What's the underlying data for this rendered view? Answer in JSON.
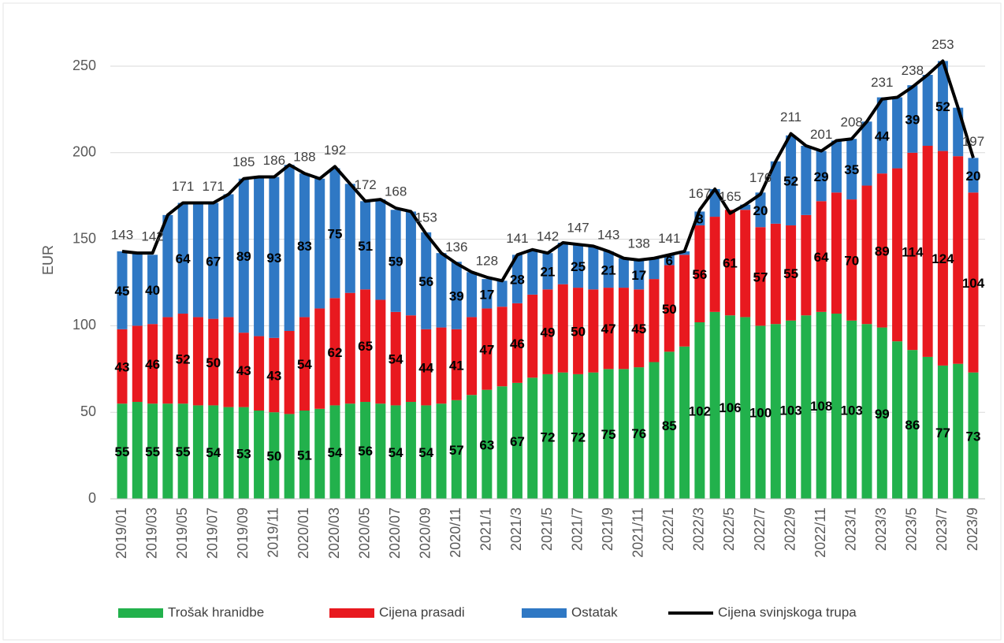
{
  "chart_data": {
    "type": "stacked-bar-line",
    "y_label": "EUR",
    "categories": [
      "2019/01",
      null,
      "2019/03",
      null,
      "2019/05",
      null,
      "2019/07",
      null,
      "2019/09",
      null,
      "2019/11",
      null,
      "2020/01",
      null,
      "2020/03",
      null,
      "2020/05",
      null,
      "2020/07",
      null,
      "2020/09",
      null,
      "2020/11",
      null,
      "2021/1",
      null,
      "2021/3",
      null,
      "2021/5",
      null,
      "2021/7",
      null,
      "2021/9",
      null,
      "2021/11",
      null,
      "2022/1",
      null,
      "2022/3",
      null,
      "2022/5",
      null,
      "2022/7",
      null,
      "2022/9",
      null,
      "2022/11",
      null,
      "2023/1",
      null,
      "2023/3",
      null,
      "2023/5",
      null,
      "2023/7",
      null,
      "2023/9"
    ],
    "ylim": [
      0,
      250
    ],
    "yticks": [
      0,
      50,
      100,
      150,
      200,
      250
    ],
    "grid": true,
    "series": [
      {
        "name": "Trošak hranidbe",
        "type": "bar",
        "color": "#22b14c",
        "values": [
          55,
          56,
          55,
          55,
          55,
          54,
          54,
          53,
          53,
          51,
          50,
          49,
          51,
          52,
          54,
          55,
          56,
          55,
          54,
          56,
          54,
          55,
          57,
          60,
          63,
          65,
          67,
          70,
          72,
          73,
          72,
          73,
          75,
          75,
          76,
          79,
          85,
          88,
          102,
          108,
          106,
          105,
          100,
          101,
          103,
          106,
          108,
          107,
          103,
          101,
          99,
          91,
          86,
          82,
          77,
          78,
          73
        ],
        "value_labels": [
          "55",
          null,
          "55",
          null,
          "55",
          null,
          "54",
          null,
          "53",
          null,
          "50",
          null,
          "51",
          null,
          "54",
          null,
          "56",
          null,
          "54",
          null,
          "54",
          null,
          "57",
          null,
          "63",
          null,
          "67",
          null,
          "72",
          null,
          "72",
          null,
          "75",
          null,
          "76",
          null,
          "85",
          null,
          "102",
          null,
          "106",
          null,
          "100",
          null,
          "103",
          null,
          "108",
          null,
          "103",
          null,
          "99",
          null,
          "86",
          null,
          "77",
          null,
          "73"
        ]
      },
      {
        "name": "Cijena prasadi",
        "type": "bar",
        "color": "#e8191f",
        "values": [
          43,
          44,
          46,
          50,
          52,
          51,
          50,
          52,
          43,
          43,
          43,
          48,
          54,
          58,
          62,
          64,
          65,
          60,
          54,
          50,
          44,
          44,
          41,
          45,
          47,
          46,
          46,
          48,
          49,
          51,
          50,
          48,
          47,
          47,
          45,
          48,
          50,
          53,
          56,
          55,
          61,
          62,
          57,
          58,
          55,
          58,
          64,
          70,
          70,
          80,
          89,
          100,
          114,
          122,
          124,
          120,
          104
        ],
        "value_labels": [
          "43",
          null,
          "46",
          null,
          "52",
          null,
          "50",
          null,
          "43",
          null,
          "43",
          null,
          "54",
          null,
          "62",
          null,
          "65",
          null,
          "54",
          null,
          "44",
          null,
          "41",
          null,
          "47",
          null,
          "46",
          null,
          "49",
          null,
          "50",
          null,
          "47",
          null,
          "45",
          null,
          "50",
          null,
          "56",
          null,
          "61",
          null,
          "57",
          null,
          "55",
          null,
          "64",
          null,
          "70",
          null,
          "89",
          null,
          "114",
          null,
          "124",
          null,
          "104"
        ]
      },
      {
        "name": "Ostatak",
        "type": "bar",
        "color": "#2f78c4",
        "values": [
          45,
          42,
          40,
          59,
          64,
          66,
          67,
          71,
          89,
          92,
          93,
          96,
          83,
          75,
          75,
          63,
          51,
          58,
          59,
          60,
          56,
          43,
          39,
          26,
          17,
          15,
          28,
          26,
          21,
          24,
          25,
          25,
          21,
          17,
          17,
          12,
          6,
          2,
          8,
          16,
          0,
          3,
          20,
          36,
          52,
          40,
          29,
          30,
          35,
          37,
          44,
          41,
          39,
          41,
          52,
          28,
          20
        ],
        "value_labels": [
          "45",
          null,
          "40",
          null,
          "64",
          null,
          "67",
          null,
          "89",
          null,
          "93",
          null,
          "83",
          null,
          "75",
          null,
          "51",
          null,
          "59",
          null,
          "56",
          null,
          "39",
          null,
          "17",
          null,
          "28",
          null,
          "21",
          null,
          "25",
          null,
          "21",
          null,
          "17",
          null,
          "6",
          null,
          "8",
          null,
          null,
          null,
          "20",
          null,
          "52",
          null,
          "29",
          null,
          "35",
          null,
          "44",
          null,
          "39",
          null,
          "52",
          null,
          "20"
        ]
      },
      {
        "name": "Cijena svinjskoga trupa",
        "type": "line",
        "color": "#000000",
        "values": [
          143,
          142,
          142,
          164,
          171,
          171,
          171,
          176,
          185,
          186,
          186,
          193,
          188,
          185,
          192,
          182,
          172,
          173,
          168,
          166,
          153,
          142,
          136,
          131,
          128,
          126,
          141,
          144,
          142,
          148,
          147,
          146,
          143,
          139,
          138,
          139,
          141,
          143,
          167,
          179,
          165,
          170,
          176,
          195,
          211,
          204,
          201,
          207,
          208,
          218,
          231,
          232,
          238,
          245,
          253,
          226,
          197
        ],
        "value_labels": [
          "143",
          null,
          "142",
          null,
          "171",
          null,
          "171",
          null,
          "185",
          null,
          "186",
          null,
          "188",
          null,
          "192",
          null,
          "172",
          null,
          "168",
          null,
          "153",
          null,
          "136",
          null,
          "128",
          null,
          "141",
          null,
          "142",
          null,
          "147",
          null,
          "143",
          null,
          "138",
          null,
          "141",
          null,
          "167",
          null,
          "165",
          null,
          "176",
          null,
          "211",
          null,
          "201",
          null,
          "208",
          null,
          "231",
          null,
          "238",
          null,
          "253",
          null,
          "197"
        ]
      }
    ]
  }
}
